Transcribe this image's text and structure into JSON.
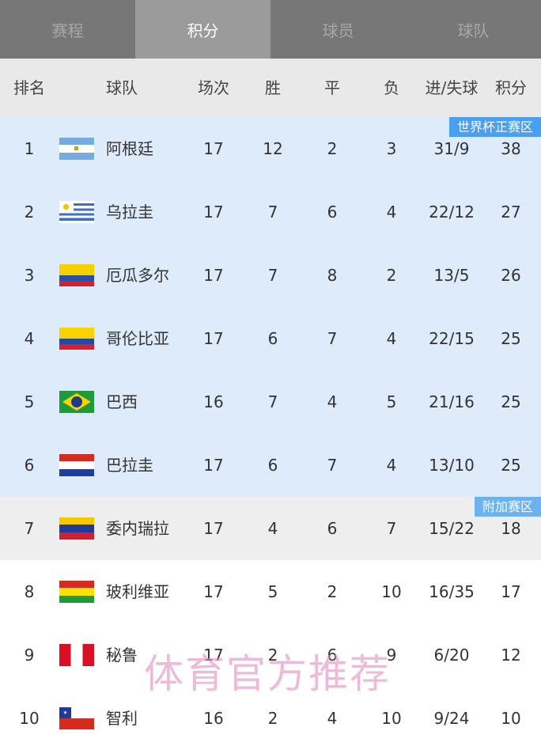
{
  "tabs": [
    {
      "label": "赛程",
      "active": false
    },
    {
      "label": "积分",
      "active": true
    },
    {
      "label": "球员",
      "active": false
    },
    {
      "label": "球队",
      "active": false
    }
  ],
  "columns": [
    "排名",
    "球队",
    "场次",
    "胜",
    "平",
    "负",
    "进/失球",
    "积分"
  ],
  "zones": {
    "qualify": {
      "label": "世界杯正赛区",
      "color": "#4a9ff0"
    },
    "playoff": {
      "label": "附加赛区",
      "color": "#6db2f0"
    }
  },
  "rows": [
    {
      "rank": "1",
      "team": "阿根廷",
      "flag": "argentina",
      "played": "17",
      "w": "12",
      "d": "2",
      "l": "3",
      "gd": "31/9",
      "pts": "38",
      "zone": "qual"
    },
    {
      "rank": "2",
      "team": "乌拉圭",
      "flag": "uruguay",
      "played": "17",
      "w": "7",
      "d": "6",
      "l": "4",
      "gd": "22/12",
      "pts": "27",
      "zone": "qual"
    },
    {
      "rank": "3",
      "team": "厄瓜多尔",
      "flag": "ecuador",
      "played": "17",
      "w": "7",
      "d": "8",
      "l": "2",
      "gd": "13/5",
      "pts": "26",
      "zone": "qual"
    },
    {
      "rank": "4",
      "team": "哥伦比亚",
      "flag": "colombia",
      "played": "17",
      "w": "6",
      "d": "7",
      "l": "4",
      "gd": "22/15",
      "pts": "25",
      "zone": "qual"
    },
    {
      "rank": "5",
      "team": "巴西",
      "flag": "brazil",
      "played": "16",
      "w": "7",
      "d": "4",
      "l": "5",
      "gd": "21/16",
      "pts": "25",
      "zone": "qual"
    },
    {
      "rank": "6",
      "team": "巴拉圭",
      "flag": "paraguay",
      "played": "17",
      "w": "6",
      "d": "7",
      "l": "4",
      "gd": "13/10",
      "pts": "25",
      "zone": "qual"
    },
    {
      "rank": "7",
      "team": "委内瑞拉",
      "flag": "venezuela",
      "played": "17",
      "w": "4",
      "d": "6",
      "l": "7",
      "gd": "15/22",
      "pts": "18",
      "zone": "play"
    },
    {
      "rank": "8",
      "team": "玻利维亚",
      "flag": "bolivia",
      "played": "17",
      "w": "5",
      "d": "2",
      "l": "10",
      "gd": "16/35",
      "pts": "17",
      "zone": "none"
    },
    {
      "rank": "9",
      "team": "秘鲁",
      "flag": "peru",
      "played": "17",
      "w": "2",
      "d": "6",
      "l": "9",
      "gd": "6/20",
      "pts": "12",
      "zone": "none"
    },
    {
      "rank": "10",
      "team": "智利",
      "flag": "chile",
      "played": "16",
      "w": "2",
      "d": "4",
      "l": "10",
      "gd": "9/24",
      "pts": "10",
      "zone": "none"
    }
  ],
  "watermark": "体育官方推荐"
}
